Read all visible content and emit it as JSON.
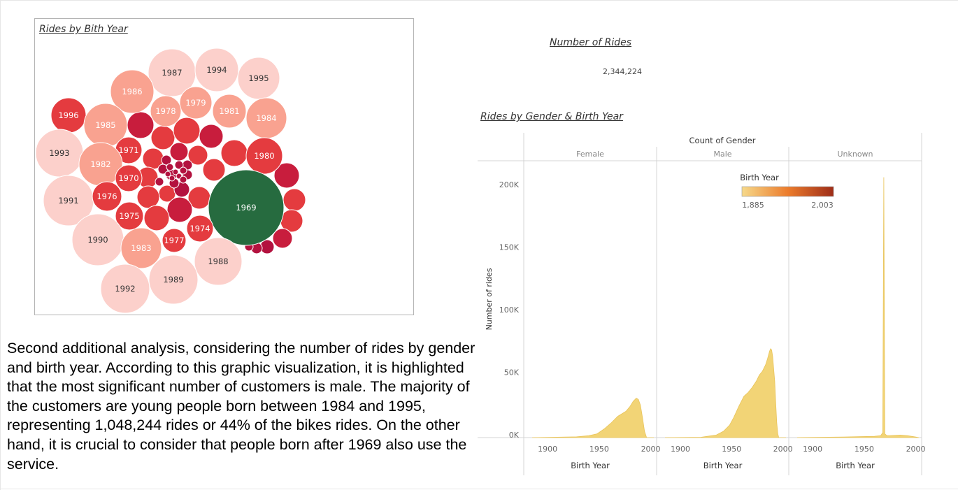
{
  "bubble_title": "Rides by Bith Year",
  "kpi": {
    "title": "Number of Rides",
    "value": "2,344,224"
  },
  "area_title": "Rides by Gender & Birth Year",
  "analysis_text": "Second additional analysis, considering the number of rides by gender and birth year. According to this graphic visualization, it is highlighted that the most significant number of customers is male. The majority of the customers are young people born between 1984 and 1995, representing 1,048,244 rides or 44% of the bikes rides. On the other hand, it is crucial to consider that people born after 1969 also use the service.",
  "colors": {
    "bubble_light": "#fcd0cb",
    "bubble_mid": "#f9a290",
    "bubble_dark": "#e43b3f",
    "bubble_darkest": "#b3123f",
    "bubble_highlight": "#266b3f",
    "area_fill": "#f2d476"
  },
  "chart_data": [
    {
      "type": "bubble",
      "title": "Rides by Bith Year",
      "labels": [
        "1987",
        "1994",
        "1995",
        "1986",
        "1979",
        "1978",
        "1981",
        "1984",
        "1996",
        "1985",
        "1993",
        "1971",
        "1982",
        "1980",
        "1970",
        "1991",
        "1976",
        "1969",
        "1975",
        "1974",
        "1990",
        "1977",
        "1983",
        "1988",
        "1989",
        "1992"
      ]
    },
    {
      "type": "area",
      "title": "Rides by Gender & Birth Year",
      "header": "Count of Gender",
      "panels": [
        "Female",
        "Male",
        "Unknown"
      ],
      "xlabel": "Birth Year",
      "ylabel": "Number of rides",
      "xlim": [
        1885,
        2003
      ],
      "xticks": [
        "1900",
        "1950",
        "2000"
      ],
      "ylim": [
        0,
        210000
      ],
      "yticks": [
        "0K",
        "50K",
        "100K",
        "150K",
        "200K"
      ],
      "legend": {
        "title": "Birth Year",
        "min_label": "1,885",
        "max_label": "2,003",
        "position": "top-right"
      },
      "series": [
        {
          "name": "Female",
          "points": [
            [
              1885,
              0
            ],
            [
              1928,
              600
            ],
            [
              1940,
              1500
            ],
            [
              1948,
              3000
            ],
            [
              1955,
              7000
            ],
            [
              1962,
              12000
            ],
            [
              1968,
              17000
            ],
            [
              1972,
              19000
            ],
            [
              1976,
              21000
            ],
            [
              1980,
              25000
            ],
            [
              1983,
              29000
            ],
            [
              1986,
              31500
            ],
            [
              1988,
              30500
            ],
            [
              1990,
              26000
            ],
            [
              1992,
              16000
            ],
            [
              1994,
              5000
            ],
            [
              1996,
              0
            ],
            [
              2003,
              0
            ]
          ]
        },
        {
          "name": "Male",
          "points": [
            [
              1885,
              0
            ],
            [
              1920,
              300
            ],
            [
              1935,
              2000
            ],
            [
              1942,
              5000
            ],
            [
              1948,
              10000
            ],
            [
              1952,
              16000
            ],
            [
              1957,
              25000
            ],
            [
              1962,
              33000
            ],
            [
              1966,
              36000
            ],
            [
              1970,
              40000
            ],
            [
              1974,
              45000
            ],
            [
              1977,
              50000
            ],
            [
              1980,
              53000
            ],
            [
              1983,
              58000
            ],
            [
              1985,
              63000
            ],
            [
              1987,
              69000
            ],
            [
              1988,
              71000
            ],
            [
              1989,
              70000
            ],
            [
              1990,
              65000
            ],
            [
              1992,
              45000
            ],
            [
              1993,
              28000
            ],
            [
              1994,
              12000
            ],
            [
              1995,
              3000
            ],
            [
              1996,
              0
            ],
            [
              2003,
              0
            ]
          ]
        },
        {
          "name": "Unknown",
          "points": [
            [
              1885,
              0
            ],
            [
              1930,
              500
            ],
            [
              1960,
              1000
            ],
            [
              1966,
              1500
            ],
            [
              1968,
              4000
            ],
            [
              1969,
              208000
            ],
            [
              1970,
              3000
            ],
            [
              1972,
              1500
            ],
            [
              1985,
              2000
            ],
            [
              1992,
              1500
            ],
            [
              2000,
              500
            ],
            [
              2003,
              0
            ]
          ]
        }
      ]
    }
  ]
}
